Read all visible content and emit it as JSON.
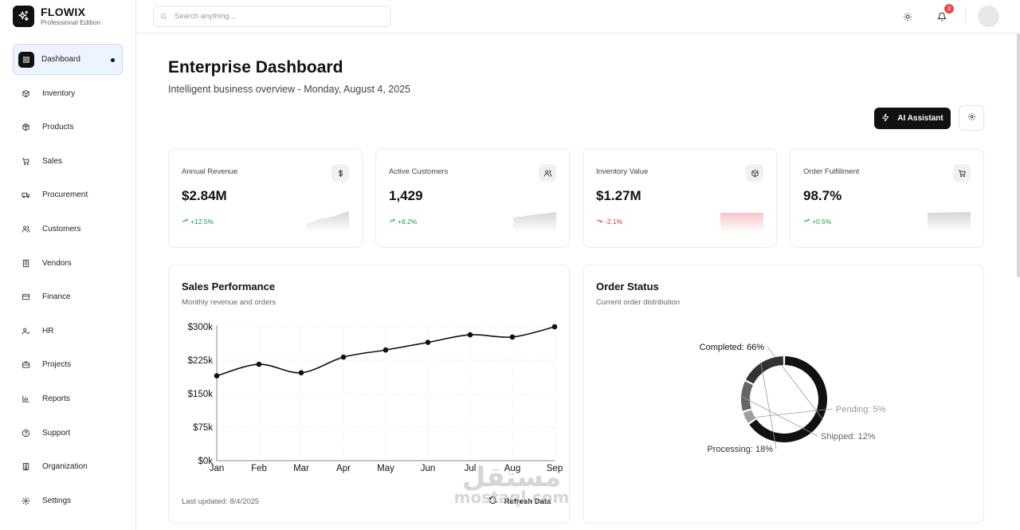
{
  "brand": {
    "name": "FLOWIX",
    "edition": "Professional Edition"
  },
  "sidebar": {
    "items": [
      {
        "label": "Dashboard",
        "icon": "grid-icon",
        "active": true
      },
      {
        "label": "Inventory",
        "icon": "box-icon"
      },
      {
        "label": "Products",
        "icon": "package-icon"
      },
      {
        "label": "Sales",
        "icon": "cart-icon"
      },
      {
        "label": "Procurement",
        "icon": "truck-icon"
      },
      {
        "label": "Customers",
        "icon": "users-icon"
      },
      {
        "label": "Vendors",
        "icon": "building-icon"
      },
      {
        "label": "Finance",
        "icon": "card-icon"
      },
      {
        "label": "HR",
        "icon": "user-check-icon"
      },
      {
        "label": "Projects",
        "icon": "briefcase-icon"
      },
      {
        "label": "Reports",
        "icon": "bar-chart-icon"
      },
      {
        "label": "Support",
        "icon": "help-icon"
      },
      {
        "label": "Organization",
        "icon": "office-icon"
      },
      {
        "label": "Settings",
        "icon": "gear-icon"
      }
    ]
  },
  "topbar": {
    "search_placeholder": "Search anything...",
    "notification_count": "3"
  },
  "header": {
    "title": "Enterprise Dashboard",
    "subtitle": "Intelligent business overview - Monday, August 4, 2025",
    "ai_button": "AI Assistant"
  },
  "kpis": [
    {
      "label": "Annual Revenue",
      "value": "$2.84M",
      "change": "+12.5%",
      "trend": "up",
      "icon": "dollar-icon"
    },
    {
      "label": "Active Customers",
      "value": "1,429",
      "change": "+8.2%",
      "trend": "up",
      "icon": "users-icon"
    },
    {
      "label": "Inventory Value",
      "value": "$1.27M",
      "change": "-2.1%",
      "trend": "down",
      "icon": "box-icon"
    },
    {
      "label": "Order Fulfillment",
      "value": "98.7%",
      "change": "+0.5%",
      "trend": "up",
      "icon": "cart-icon"
    }
  ],
  "sales": {
    "title": "Sales Performance",
    "subtitle": "Monthly revenue and orders",
    "last_updated": "Last updated: 8/4/2025",
    "refresh_label": "Refresh Data"
  },
  "orders": {
    "title": "Order Status",
    "subtitle": "Current order distribution"
  },
  "watermark": {
    "arabic": "مستقل",
    "latin": "mostaql.com"
  },
  "colors": {
    "accent": "#111111",
    "positive": "#1a9b4a",
    "negative": "#d8323b",
    "badge": "#e5484d"
  },
  "chart_data": [
    {
      "type": "line",
      "categories": [
        "Jan",
        "Feb",
        "Mar",
        "Apr",
        "May",
        "Jun",
        "Jul",
        "Aug",
        "Sep"
      ],
      "values": [
        190000,
        216000,
        197000,
        232000,
        248000,
        265000,
        282000,
        277000,
        300000
      ],
      "yticks": [
        "$0k",
        "$75k",
        "$150k",
        "$225k",
        "$300k"
      ],
      "ylim": [
        0,
        300000
      ],
      "grid": true
    },
    {
      "type": "pie",
      "slices": [
        {
          "label": "Completed",
          "value": 66,
          "text": "Completed: 66%",
          "color": "#111111"
        },
        {
          "label": "Pending",
          "value": 5,
          "text": "Pending: 5%",
          "color": "#9e9e9e"
        },
        {
          "label": "Shipped",
          "value": 12,
          "text": "Shipped: 12%",
          "color": "#666666"
        },
        {
          "label": "Processing",
          "value": 18,
          "text": "Processing: 18%",
          "color": "#333333"
        }
      ]
    }
  ]
}
